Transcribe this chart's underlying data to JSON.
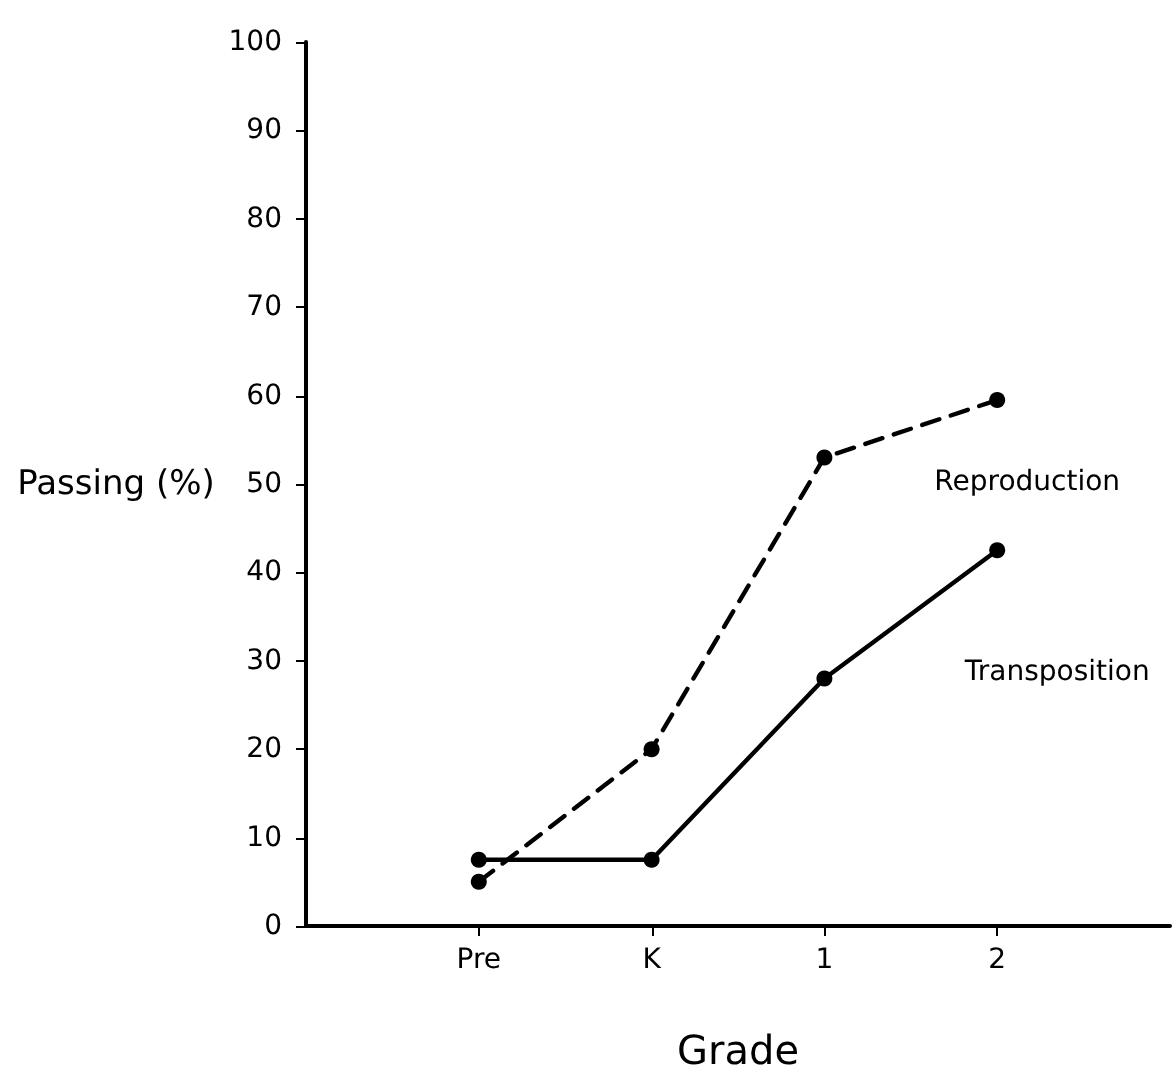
{
  "chart_data": {
    "type": "line",
    "xlabel": "Grade",
    "ylabel": "Passing (%)",
    "categories": [
      null,
      "Pre",
      "K",
      "1",
      "2",
      null
    ],
    "series": [
      {
        "name": "Reproduction",
        "color": "#000000",
        "line_style": "dashed",
        "values": [
          null,
          5,
          20,
          53,
          59.5,
          null
        ]
      },
      {
        "name": "Transposition",
        "color": "#000000",
        "line_style": "solid",
        "values": [
          null,
          7.5,
          7.5,
          28,
          42.5,
          null
        ]
      }
    ],
    "ylim": [
      0,
      100
    ],
    "yticks": [
      0,
      10,
      20,
      30,
      40,
      50,
      60,
      70,
      80,
      90,
      100
    ],
    "grid": false,
    "legend": false,
    "marker": "circle"
  }
}
